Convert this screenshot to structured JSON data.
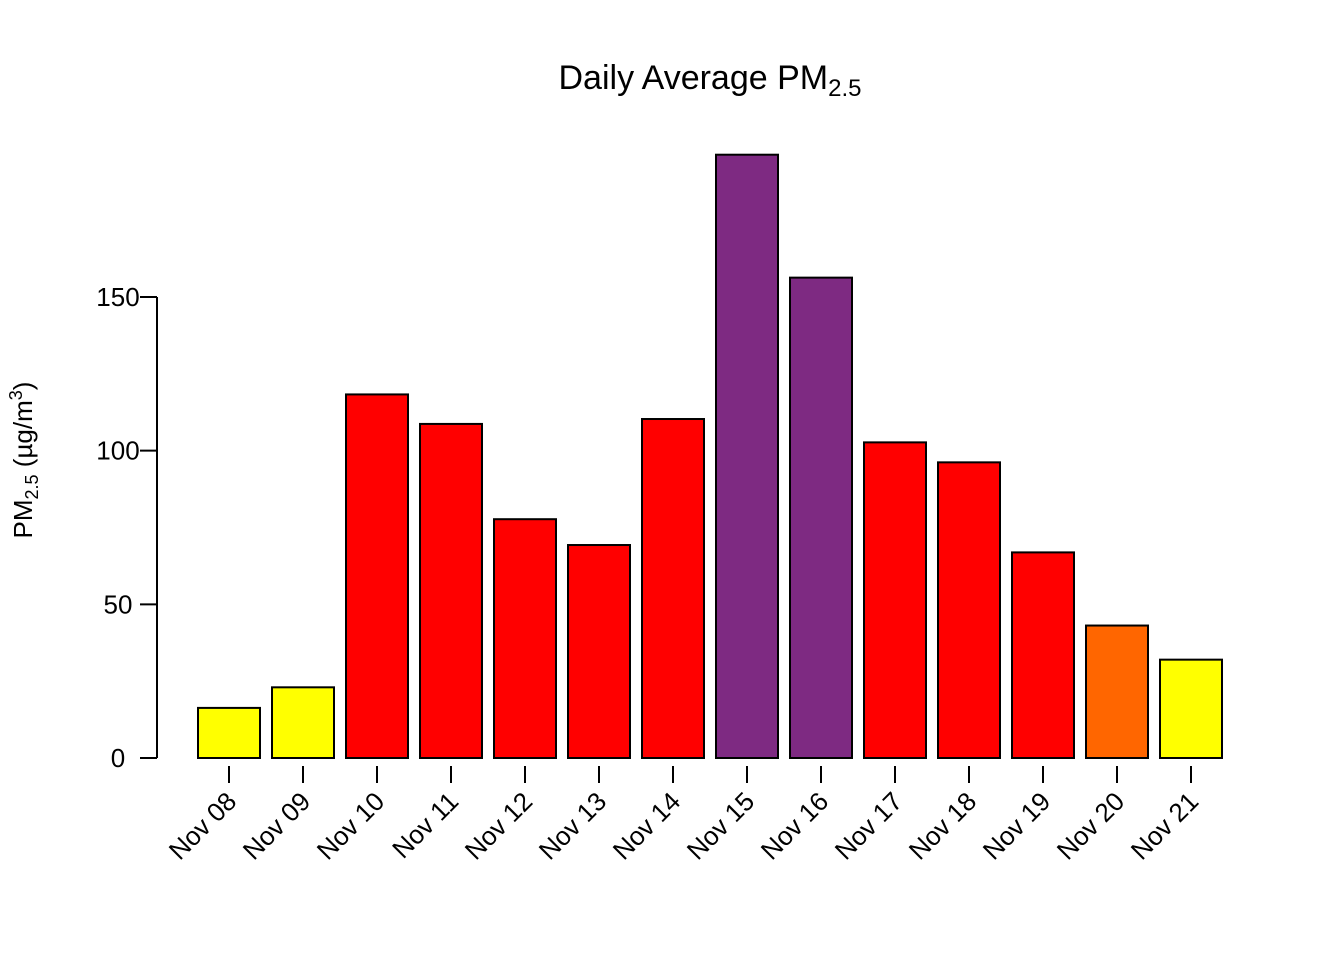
{
  "chart_data": {
    "type": "bar",
    "title": {
      "main": "Daily Average PM",
      "sub": "2.5"
    },
    "ylabel": {
      "main": "PM",
      "sub": "2.5",
      "unit": " (µg/m",
      "sup": "3",
      "close": ")"
    },
    "xlabel": "",
    "categories": [
      "Nov 08",
      "Nov 09",
      "Nov 10",
      "Nov 11",
      "Nov 12",
      "Nov 13",
      "Nov 14",
      "Nov 15",
      "Nov 16",
      "Nov 17",
      "Nov 18",
      "Nov 19",
      "Nov 20",
      "Nov 21"
    ],
    "values": [
      16.3,
      23.0,
      118.3,
      108.7,
      77.7,
      69.3,
      110.3,
      196.3,
      156.3,
      102.7,
      96.2,
      66.9,
      43.1,
      32.0
    ],
    "colors": [
      "#FFFF00",
      "#FFFF00",
      "#FF0000",
      "#FF0000",
      "#FF0000",
      "#FF0000",
      "#FF0000",
      "#7E2A82",
      "#7E2A82",
      "#FF0000",
      "#FF0000",
      "#FF0000",
      "#FF6600",
      "#FFFF00"
    ],
    "yticks": [
      0,
      50,
      100,
      150
    ],
    "ylim": [
      0,
      196.3
    ],
    "grid": false,
    "legend": "none"
  }
}
